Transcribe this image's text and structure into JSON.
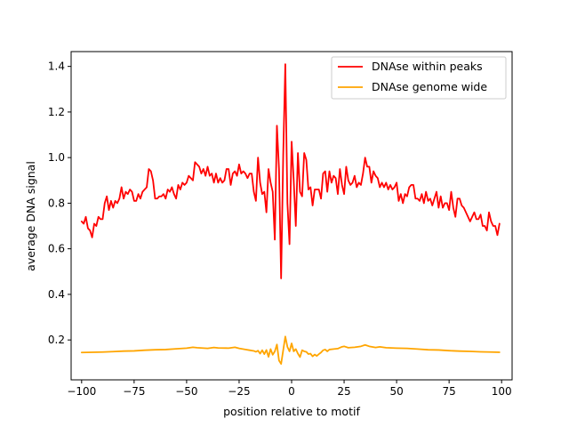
{
  "chart_data": {
    "type": "line",
    "xlabel": "position relative to motif",
    "ylabel": "average DNA signal",
    "xlim": [
      -105,
      105
    ],
    "ylim": [
      0.025,
      1.465
    ],
    "xticks": [
      -100,
      -75,
      -50,
      -25,
      0,
      25,
      50,
      75,
      100
    ],
    "yticks": [
      0.2,
      0.4,
      0.6,
      0.8,
      1.0,
      1.2,
      1.4
    ],
    "ytick_labels": [
      "0.2",
      "0.4",
      "0.6",
      "0.8",
      "1.0",
      "1.2",
      "1.4"
    ],
    "grid": false,
    "legend_position": "top-right",
    "series": [
      {
        "name": "DNAse within peaks",
        "color": "#ff0000",
        "points": [
          [
            -100,
            0.72
          ],
          [
            -99,
            0.71
          ],
          [
            -98,
            0.74
          ],
          [
            -97,
            0.69
          ],
          [
            -96,
            0.68
          ],
          [
            -95,
            0.65
          ],
          [
            -94,
            0.71
          ],
          [
            -93,
            0.7
          ],
          [
            -92,
            0.74
          ],
          [
            -91,
            0.73
          ],
          [
            -90,
            0.73
          ],
          [
            -89,
            0.8
          ],
          [
            -88,
            0.83
          ],
          [
            -87,
            0.77
          ],
          [
            -86,
            0.81
          ],
          [
            -85,
            0.78
          ],
          [
            -84,
            0.81
          ],
          [
            -83,
            0.8
          ],
          [
            -82,
            0.82
          ],
          [
            -81,
            0.87
          ],
          [
            -80,
            0.82
          ],
          [
            -79,
            0.85
          ],
          [
            -78,
            0.84
          ],
          [
            -77,
            0.86
          ],
          [
            -76,
            0.85
          ],
          [
            -75,
            0.81
          ],
          [
            -74,
            0.81
          ],
          [
            -73,
            0.84
          ],
          [
            -72,
            0.82
          ],
          [
            -71,
            0.85
          ],
          [
            -70,
            0.86
          ],
          [
            -69,
            0.87
          ],
          [
            -68,
            0.95
          ],
          [
            -67,
            0.94
          ],
          [
            -66,
            0.9
          ],
          [
            -65,
            0.82
          ],
          [
            -64,
            0.82
          ],
          [
            -63,
            0.83
          ],
          [
            -62,
            0.83
          ],
          [
            -61,
            0.84
          ],
          [
            -60,
            0.82
          ],
          [
            -59,
            0.86
          ],
          [
            -58,
            0.85
          ],
          [
            -57,
            0.87
          ],
          [
            -56,
            0.84
          ],
          [
            -55,
            0.82
          ],
          [
            -54,
            0.88
          ],
          [
            -53,
            0.86
          ],
          [
            -52,
            0.89
          ],
          [
            -51,
            0.88
          ],
          [
            -50,
            0.89
          ],
          [
            -49,
            0.92
          ],
          [
            -48,
            0.91
          ],
          [
            -47,
            0.9
          ],
          [
            -46,
            0.98
          ],
          [
            -45,
            0.97
          ],
          [
            -44,
            0.96
          ],
          [
            -43,
            0.93
          ],
          [
            -42,
            0.95
          ],
          [
            -41,
            0.92
          ],
          [
            -40,
            0.96
          ],
          [
            -39,
            0.92
          ],
          [
            -38,
            0.93
          ],
          [
            -37,
            0.89
          ],
          [
            -36,
            0.93
          ],
          [
            -35,
            0.89
          ],
          [
            -34,
            0.91
          ],
          [
            -33,
            0.89
          ],
          [
            -32,
            0.9
          ],
          [
            -31,
            0.95
          ],
          [
            -30,
            0.95
          ],
          [
            -29,
            0.88
          ],
          [
            -28,
            0.93
          ],
          [
            -27,
            0.94
          ],
          [
            -26,
            0.92
          ],
          [
            -25,
            0.97
          ],
          [
            -24,
            0.93
          ],
          [
            -23,
            0.94
          ],
          [
            -22,
            0.93
          ],
          [
            -21,
            0.91
          ],
          [
            -20,
            0.93
          ],
          [
            -19,
            0.93
          ],
          [
            -18,
            0.85
          ],
          [
            -17,
            0.81
          ],
          [
            -16,
            1.0
          ],
          [
            -15,
            0.89
          ],
          [
            -14,
            0.84
          ],
          [
            -13,
            0.85
          ],
          [
            -12,
            0.76
          ],
          [
            -11,
            0.95
          ],
          [
            -10,
            0.89
          ],
          [
            -9,
            0.85
          ],
          [
            -8,
            0.64
          ],
          [
            -7,
            1.14
          ],
          [
            -6,
            0.95
          ],
          [
            -5,
            0.47
          ],
          [
            -4,
            1.01
          ],
          [
            -3,
            1.41
          ],
          [
            -2,
            0.8
          ],
          [
            -1,
            0.62
          ],
          [
            0,
            1.07
          ],
          [
            1,
            0.9
          ],
          [
            2,
            0.7
          ],
          [
            3,
            1.02
          ],
          [
            4,
            0.85
          ],
          [
            5,
            0.83
          ],
          [
            6,
            1.02
          ],
          [
            7,
            0.99
          ],
          [
            8,
            0.86
          ],
          [
            9,
            0.87
          ],
          [
            10,
            0.79
          ],
          [
            11,
            0.86
          ],
          [
            12,
            0.86
          ],
          [
            13,
            0.86
          ],
          [
            14,
            0.82
          ],
          [
            15,
            0.93
          ],
          [
            16,
            0.94
          ],
          [
            17,
            0.85
          ],
          [
            18,
            0.94
          ],
          [
            19,
            0.89
          ],
          [
            20,
            0.92
          ],
          [
            21,
            0.91
          ],
          [
            22,
            0.84
          ],
          [
            23,
            0.95
          ],
          [
            24,
            0.88
          ],
          [
            25,
            0.84
          ],
          [
            26,
            0.96
          ],
          [
            27,
            0.9
          ],
          [
            28,
            0.88
          ],
          [
            29,
            0.89
          ],
          [
            30,
            0.92
          ],
          [
            31,
            0.87
          ],
          [
            32,
            0.89
          ],
          [
            33,
            0.88
          ],
          [
            34,
            0.93
          ],
          [
            35,
            1.0
          ],
          [
            36,
            0.96
          ],
          [
            37,
            0.96
          ],
          [
            38,
            0.89
          ],
          [
            39,
            0.94
          ],
          [
            40,
            0.92
          ],
          [
            41,
            0.91
          ],
          [
            42,
            0.87
          ],
          [
            43,
            0.89
          ],
          [
            44,
            0.87
          ],
          [
            45,
            0.89
          ],
          [
            46,
            0.86
          ],
          [
            47,
            0.88
          ],
          [
            48,
            0.86
          ],
          [
            49,
            0.87
          ],
          [
            50,
            0.89
          ],
          [
            51,
            0.81
          ],
          [
            52,
            0.84
          ],
          [
            53,
            0.8
          ],
          [
            54,
            0.84
          ],
          [
            55,
            0.83
          ],
          [
            56,
            0.87
          ],
          [
            57,
            0.88
          ],
          [
            58,
            0.88
          ],
          [
            59,
            0.82
          ],
          [
            60,
            0.82
          ],
          [
            61,
            0.81
          ],
          [
            62,
            0.84
          ],
          [
            63,
            0.8
          ],
          [
            64,
            0.85
          ],
          [
            65,
            0.81
          ],
          [
            66,
            0.82
          ],
          [
            67,
            0.79
          ],
          [
            68,
            0.82
          ],
          [
            69,
            0.85
          ],
          [
            70,
            0.78
          ],
          [
            71,
            0.83
          ],
          [
            72,
            0.78
          ],
          [
            73,
            0.8
          ],
          [
            74,
            0.8
          ],
          [
            75,
            0.77
          ],
          [
            76,
            0.85
          ],
          [
            77,
            0.78
          ],
          [
            78,
            0.74
          ],
          [
            79,
            0.82
          ],
          [
            80,
            0.82
          ],
          [
            81,
            0.79
          ],
          [
            82,
            0.78
          ],
          [
            83,
            0.76
          ],
          [
            84,
            0.74
          ],
          [
            85,
            0.72
          ],
          [
            86,
            0.74
          ],
          [
            87,
            0.76
          ],
          [
            88,
            0.73
          ],
          [
            89,
            0.73
          ],
          [
            90,
            0.75
          ],
          [
            91,
            0.7
          ],
          [
            92,
            0.7
          ],
          [
            93,
            0.68
          ],
          [
            94,
            0.76
          ],
          [
            95,
            0.72
          ],
          [
            96,
            0.7
          ],
          [
            97,
            0.7
          ],
          [
            98,
            0.66
          ],
          [
            99,
            0.71
          ]
        ]
      },
      {
        "name": "DNAse genome wide",
        "color": "#ffa500",
        "points": [
          [
            -100,
            0.145
          ],
          [
            -95,
            0.146
          ],
          [
            -90,
            0.147
          ],
          [
            -85,
            0.149
          ],
          [
            -80,
            0.151
          ],
          [
            -75,
            0.152
          ],
          [
            -70,
            0.155
          ],
          [
            -65,
            0.157
          ],
          [
            -60,
            0.158
          ],
          [
            -55,
            0.161
          ],
          [
            -50,
            0.164
          ],
          [
            -47,
            0.168
          ],
          [
            -45,
            0.166
          ],
          [
            -40,
            0.163
          ],
          [
            -37,
            0.167
          ],
          [
            -35,
            0.165
          ],
          [
            -30,
            0.164
          ],
          [
            -27,
            0.168
          ],
          [
            -25,
            0.163
          ],
          [
            -22,
            0.158
          ],
          [
            -20,
            0.155
          ],
          [
            -18,
            0.152
          ],
          [
            -17,
            0.148
          ],
          [
            -16,
            0.153
          ],
          [
            -15,
            0.14
          ],
          [
            -14,
            0.155
          ],
          [
            -13,
            0.138
          ],
          [
            -12,
            0.156
          ],
          [
            -11,
            0.126
          ],
          [
            -10,
            0.16
          ],
          [
            -9,
            0.135
          ],
          [
            -8,
            0.15
          ],
          [
            -7,
            0.18
          ],
          [
            -6,
            0.11
          ],
          [
            -5,
            0.095
          ],
          [
            -4,
            0.155
          ],
          [
            -3,
            0.215
          ],
          [
            -2,
            0.17
          ],
          [
            -1,
            0.15
          ],
          [
            0,
            0.185
          ],
          [
            1,
            0.15
          ],
          [
            2,
            0.16
          ],
          [
            3,
            0.14
          ],
          [
            4,
            0.125
          ],
          [
            5,
            0.155
          ],
          [
            6,
            0.15
          ],
          [
            7,
            0.148
          ],
          [
            8,
            0.138
          ],
          [
            9,
            0.14
          ],
          [
            10,
            0.128
          ],
          [
            11,
            0.136
          ],
          [
            12,
            0.13
          ],
          [
            13,
            0.138
          ],
          [
            14,
            0.145
          ],
          [
            15,
            0.155
          ],
          [
            16,
            0.158
          ],
          [
            17,
            0.15
          ],
          [
            18,
            0.158
          ],
          [
            20,
            0.16
          ],
          [
            22,
            0.162
          ],
          [
            24,
            0.17
          ],
          [
            25,
            0.172
          ],
          [
            27,
            0.166
          ],
          [
            30,
            0.168
          ],
          [
            33,
            0.172
          ],
          [
            35,
            0.178
          ],
          [
            37,
            0.172
          ],
          [
            40,
            0.167
          ],
          [
            42,
            0.17
          ],
          [
            45,
            0.166
          ],
          [
            50,
            0.164
          ],
          [
            55,
            0.163
          ],
          [
            60,
            0.16
          ],
          [
            65,
            0.157
          ],
          [
            70,
            0.156
          ],
          [
            75,
            0.153
          ],
          [
            80,
            0.151
          ],
          [
            85,
            0.15
          ],
          [
            90,
            0.148
          ],
          [
            95,
            0.147
          ],
          [
            99,
            0.146
          ]
        ]
      }
    ]
  }
}
